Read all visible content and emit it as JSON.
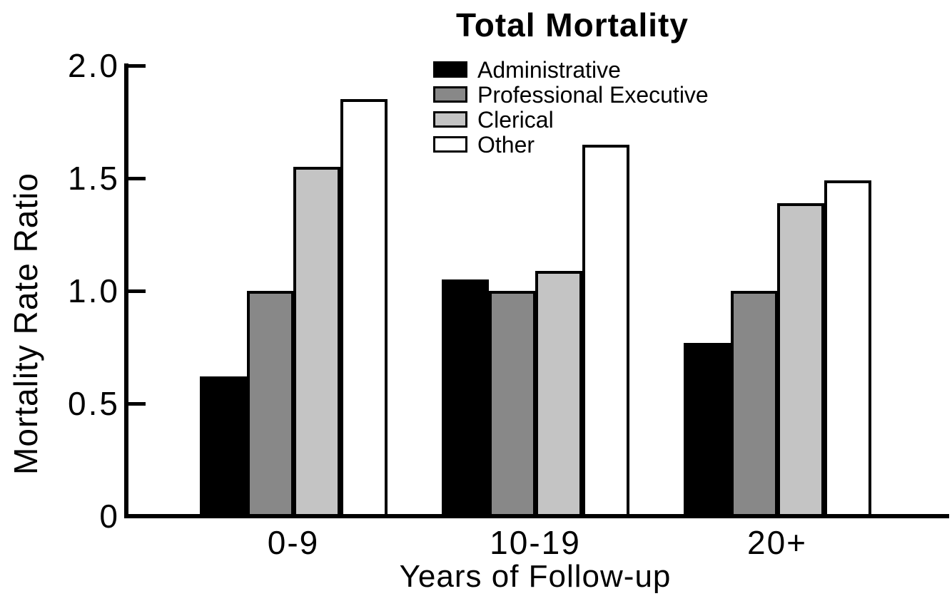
{
  "chart_data": {
    "type": "bar",
    "title": "Total Mortality",
    "xlabel": "Years of Follow-up",
    "ylabel": "Mortality Rate Ratio",
    "categories": [
      "0-9",
      "10-19",
      "20+"
    ],
    "series": [
      {
        "name": "Administrative",
        "color": "#000000",
        "values": [
          0.62,
          1.05,
          0.77
        ]
      },
      {
        "name": "Professional Executive",
        "color": "#888888",
        "values": [
          1.0,
          1.0,
          1.0
        ]
      },
      {
        "name": "Clerical",
        "color": "#c4c4c4",
        "values": [
          1.55,
          1.09,
          1.39
        ]
      },
      {
        "name": "Other",
        "color": "#ffffff",
        "values": [
          1.85,
          1.65,
          1.49
        ]
      }
    ],
    "ylim": [
      0,
      2.0
    ],
    "yticks": [
      0,
      0.5,
      1.0,
      1.5,
      2.0
    ],
    "ytick_labels": [
      "0",
      "0.5",
      "1.0",
      "1.5",
      "2.0"
    ],
    "legend_position": "top-center",
    "grid": false,
    "background_color": "#ffffff",
    "bar_outline_color": "#000000"
  }
}
